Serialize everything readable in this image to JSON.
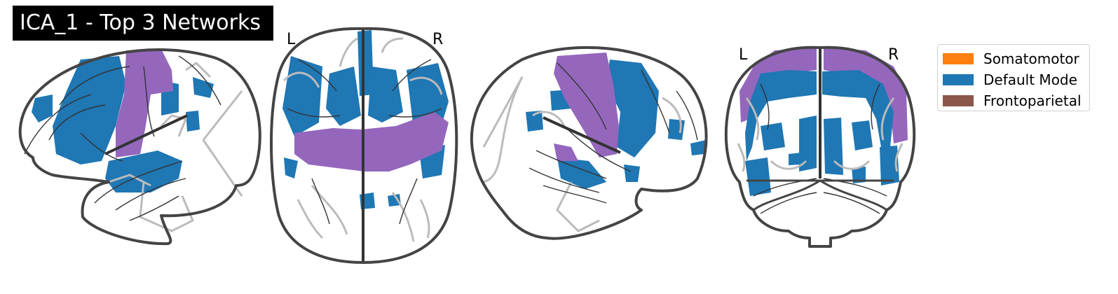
{
  "figure": {
    "title": "ICA_1 - Top 3 Networks"
  },
  "views": [
    {
      "name": "left-sagittal"
    },
    {
      "name": "axial",
      "left_label": "L",
      "right_label": "R"
    },
    {
      "name": "right-sagittal"
    },
    {
      "name": "coronal",
      "left_label": "L",
      "right_label": "R"
    }
  ],
  "legend": {
    "items": [
      {
        "label": "Somatomotor",
        "color": "#ff7f0e"
      },
      {
        "label": "Default Mode",
        "color": "#1f77b4"
      },
      {
        "label": "Frontoparietal",
        "color": "#8c564b"
      }
    ]
  },
  "colors": {
    "default_mode_blobs": "#1f77b4",
    "overlap_purple": "#9467bd",
    "brain_outline": "#444444",
    "sulci_gray": "#bbbbbb"
  }
}
